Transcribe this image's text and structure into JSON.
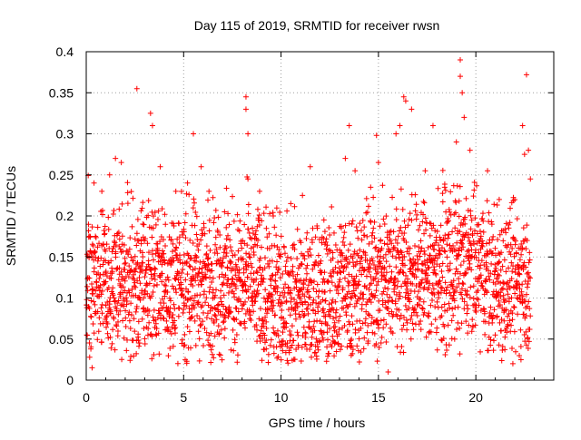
{
  "chart_data": {
    "type": "scatter",
    "title": "Day 115 of 2019, SRMTID for receiver rwsn",
    "xlabel": "GPS time / hours",
    "ylabel": "SRMTID / TECUs",
    "xlim": [
      0,
      24
    ],
    "ylim": [
      0,
      0.4
    ],
    "x_ticks": [
      0,
      5,
      10,
      15,
      20
    ],
    "y_ticks": [
      0,
      0.05,
      0.1,
      0.15,
      0.2,
      0.25,
      0.3,
      0.35,
      0.4
    ],
    "x_tick_labels": [
      "0",
      "5",
      "10",
      "15",
      "20"
    ],
    "y_tick_labels": [
      "0",
      "0.05",
      "0.1",
      "0.15",
      "0.2",
      "0.25",
      "0.3",
      "0.35",
      "0.4"
    ],
    "grid": true,
    "marker": "+",
    "series": [
      {
        "name": "SRMTID",
        "color": "#ff0000",
        "x_range_hours": [
          0,
          22.8
        ],
        "typical_range": [
          0.02,
          0.28
        ],
        "points": [
          [
            0.3,
            0.015
          ],
          [
            0.4,
            0.24
          ],
          [
            0.8,
            0.23
          ],
          [
            1.2,
            0.25
          ],
          [
            1.5,
            0.27
          ],
          [
            1.8,
            0.265
          ],
          [
            2.6,
            0.355
          ],
          [
            2.9,
            0.19
          ],
          [
            3.3,
            0.325
          ],
          [
            3.4,
            0.31
          ],
          [
            3.8,
            0.26
          ],
          [
            4.6,
            0.23
          ],
          [
            5.2,
            0.24
          ],
          [
            5.5,
            0.3
          ],
          [
            5.9,
            0.26
          ],
          [
            6.3,
            0.23
          ],
          [
            7.1,
            0.205
          ],
          [
            8.2,
            0.345
          ],
          [
            8.2,
            0.33
          ],
          [
            8.3,
            0.3
          ],
          [
            8.3,
            0.245
          ],
          [
            8.9,
            0.23
          ],
          [
            9.6,
            0.2
          ],
          [
            10.5,
            0.215
          ],
          [
            11.1,
            0.225
          ],
          [
            11.5,
            0.26
          ],
          [
            12.2,
            0.195
          ],
          [
            13.3,
            0.27
          ],
          [
            13.5,
            0.31
          ],
          [
            13.8,
            0.255
          ],
          [
            14.6,
            0.235
          ],
          [
            14.9,
            0.298
          ],
          [
            15.0,
            0.265
          ],
          [
            15.5,
            0.01
          ],
          [
            15.9,
            0.3
          ],
          [
            16.1,
            0.31
          ],
          [
            16.3,
            0.345
          ],
          [
            16.4,
            0.34
          ],
          [
            16.7,
            0.33
          ],
          [
            17.4,
            0.255
          ],
          [
            17.8,
            0.31
          ],
          [
            18.4,
            0.235
          ],
          [
            19.0,
            0.29
          ],
          [
            19.2,
            0.39
          ],
          [
            19.2,
            0.37
          ],
          [
            19.3,
            0.35
          ],
          [
            19.4,
            0.32
          ],
          [
            19.7,
            0.28
          ],
          [
            20.6,
            0.255
          ],
          [
            21.2,
            0.22
          ],
          [
            21.9,
            0.02
          ],
          [
            22.4,
            0.31
          ],
          [
            22.5,
            0.275
          ],
          [
            22.6,
            0.372
          ],
          [
            22.7,
            0.28
          ],
          [
            22.8,
            0.245
          ]
        ]
      }
    ]
  }
}
